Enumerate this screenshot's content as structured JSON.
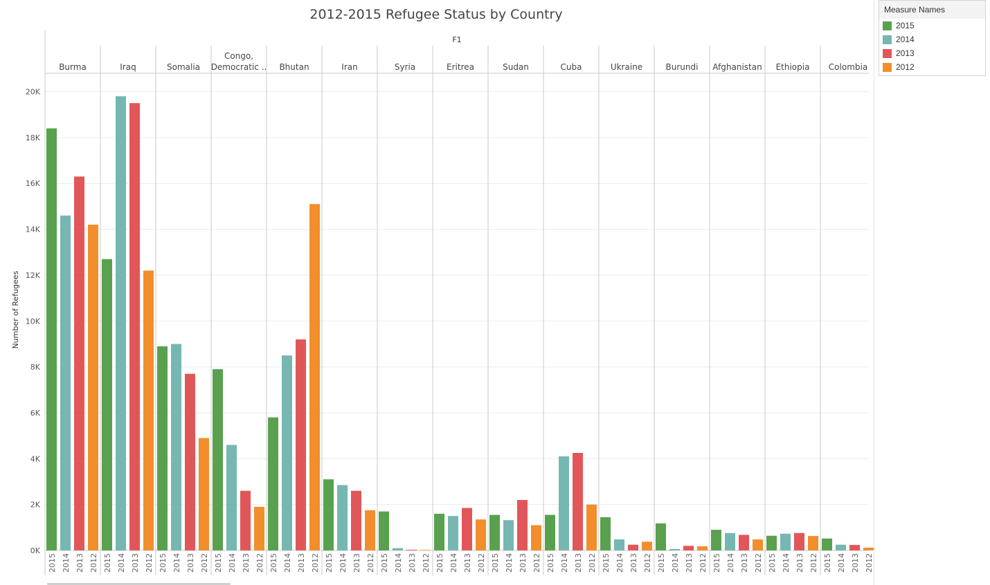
{
  "chart_data": {
    "type": "bar",
    "title": "2012-2015 Refugee Status by Country",
    "header_label": "F1",
    "ylabel": "Number of Refugees",
    "ylim": [
      0,
      20800
    ],
    "yticks": [
      0,
      2000,
      4000,
      6000,
      8000,
      10000,
      12000,
      14000,
      16000,
      18000,
      20000
    ],
    "ytick_labels": [
      "0K",
      "2K",
      "4K",
      "6K",
      "8K",
      "10K",
      "12K",
      "14K",
      "16K",
      "18K",
      "20K"
    ],
    "grid": true,
    "legend_title": "Measure Names",
    "legend_position": "top-right",
    "series": [
      {
        "name": "2015",
        "color": "#59a14f"
      },
      {
        "name": "2014",
        "color": "#76b7b2"
      },
      {
        "name": "2013",
        "color": "#e15759"
      },
      {
        "name": "2012",
        "color": "#f28e2b"
      }
    ],
    "groups": [
      {
        "label": [
          "Burma"
        ],
        "values": [
          18400,
          14600,
          16300,
          14200
        ]
      },
      {
        "label": [
          "Iraq"
        ],
        "values": [
          12700,
          19800,
          19500,
          12200
        ]
      },
      {
        "label": [
          "Somalia"
        ],
        "values": [
          8900,
          9000,
          7700,
          4900
        ]
      },
      {
        "label": [
          "Congo,",
          "Democratic .."
        ],
        "values": [
          7900,
          4600,
          2600,
          1900
        ]
      },
      {
        "label": [
          "Bhutan"
        ],
        "values": [
          5800,
          8500,
          9200,
          15100
        ]
      },
      {
        "label": [
          "Iran"
        ],
        "values": [
          3100,
          2850,
          2600,
          1750
        ]
      },
      {
        "label": [
          "Syria"
        ],
        "values": [
          1700,
          100,
          30,
          20
        ]
      },
      {
        "label": [
          "Eritrea"
        ],
        "values": [
          1600,
          1500,
          1850,
          1350
        ]
      },
      {
        "label": [
          "Sudan"
        ],
        "values": [
          1550,
          1320,
          2200,
          1100
        ]
      },
      {
        "label": [
          "Cuba"
        ],
        "values": [
          1550,
          4100,
          4250,
          2000
        ]
      },
      {
        "label": [
          "Ukraine"
        ],
        "values": [
          1450,
          480,
          250,
          380
        ]
      },
      {
        "label": [
          "Burundi"
        ],
        "values": [
          1180,
          60,
          200,
          180
        ]
      },
      {
        "label": [
          "Afghanistan"
        ],
        "values": [
          900,
          760,
          680,
          480
        ]
      },
      {
        "label": [
          "Ethiopia"
        ],
        "values": [
          640,
          730,
          760,
          630
        ]
      },
      {
        "label": [
          "Colombia"
        ],
        "values": [
          520,
          250,
          240,
          120
        ]
      }
    ]
  }
}
